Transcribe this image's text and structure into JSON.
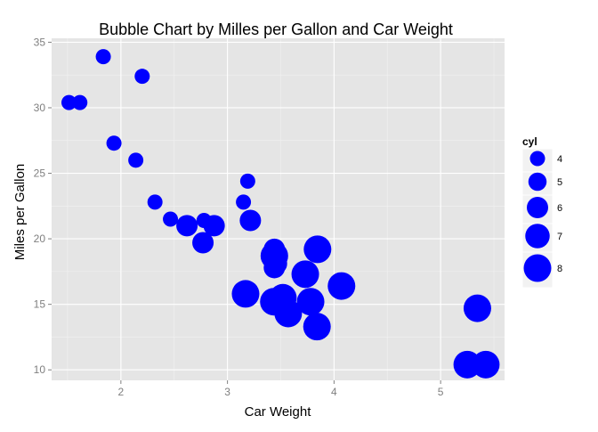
{
  "chart_data": {
    "type": "scatter",
    "title": "Bubble Chart by Milles per Gallon and  Car Weight",
    "xlabel": "Car Weight",
    "ylabel": "Miles per Gallon",
    "xlim": [
      1.35,
      5.6
    ],
    "ylim": [
      9.2,
      35.3
    ],
    "x_ticks": [
      2,
      3,
      4,
      5
    ],
    "y_ticks": [
      10,
      15,
      20,
      25,
      30,
      35
    ],
    "grid": true,
    "legend": {
      "title": "cyl",
      "position": "right",
      "entries": [
        {
          "label": "4",
          "value": 4
        },
        {
          "label": "5",
          "value": 5
        },
        {
          "label": "6",
          "value": 6
        },
        {
          "label": "7",
          "value": 7
        },
        {
          "label": "8",
          "value": 8
        }
      ]
    },
    "size_variable": "cyl",
    "colors": {
      "point": "#0000ff",
      "panel": "#e5e5e5",
      "grid": "#ffffff",
      "axis_text": "#7f7f7f"
    },
    "points": [
      {
        "x": 2.62,
        "y": 21.0,
        "cyl": 6
      },
      {
        "x": 2.875,
        "y": 21.0,
        "cyl": 6
      },
      {
        "x": 2.32,
        "y": 22.8,
        "cyl": 4
      },
      {
        "x": 3.215,
        "y": 21.4,
        "cyl": 6
      },
      {
        "x": 3.44,
        "y": 18.7,
        "cyl": 8
      },
      {
        "x": 3.46,
        "y": 18.1,
        "cyl": 6
      },
      {
        "x": 3.57,
        "y": 14.3,
        "cyl": 8
      },
      {
        "x": 3.19,
        "y": 24.4,
        "cyl": 4
      },
      {
        "x": 3.15,
        "y": 22.8,
        "cyl": 4
      },
      {
        "x": 3.44,
        "y": 19.2,
        "cyl": 6
      },
      {
        "x": 3.44,
        "y": 17.8,
        "cyl": 6
      },
      {
        "x": 4.07,
        "y": 16.4,
        "cyl": 8
      },
      {
        "x": 3.73,
        "y": 17.3,
        "cyl": 8
      },
      {
        "x": 3.78,
        "y": 15.2,
        "cyl": 8
      },
      {
        "x": 5.25,
        "y": 10.4,
        "cyl": 8
      },
      {
        "x": 5.424,
        "y": 10.4,
        "cyl": 8
      },
      {
        "x": 5.345,
        "y": 14.7,
        "cyl": 8
      },
      {
        "x": 2.2,
        "y": 32.4,
        "cyl": 4
      },
      {
        "x": 1.615,
        "y": 30.4,
        "cyl": 4
      },
      {
        "x": 1.835,
        "y": 33.9,
        "cyl": 4
      },
      {
        "x": 2.465,
        "y": 21.5,
        "cyl": 4
      },
      {
        "x": 3.52,
        "y": 15.5,
        "cyl": 8
      },
      {
        "x": 3.435,
        "y": 15.2,
        "cyl": 8
      },
      {
        "x": 3.84,
        "y": 13.3,
        "cyl": 8
      },
      {
        "x": 3.845,
        "y": 19.2,
        "cyl": 8
      },
      {
        "x": 1.935,
        "y": 27.3,
        "cyl": 4
      },
      {
        "x": 2.14,
        "y": 26.0,
        "cyl": 4
      },
      {
        "x": 1.513,
        "y": 30.4,
        "cyl": 4
      },
      {
        "x": 3.17,
        "y": 15.8,
        "cyl": 8
      },
      {
        "x": 2.77,
        "y": 19.7,
        "cyl": 6
      },
      {
        "x": 2.78,
        "y": 21.4,
        "cyl": 4
      }
    ]
  }
}
